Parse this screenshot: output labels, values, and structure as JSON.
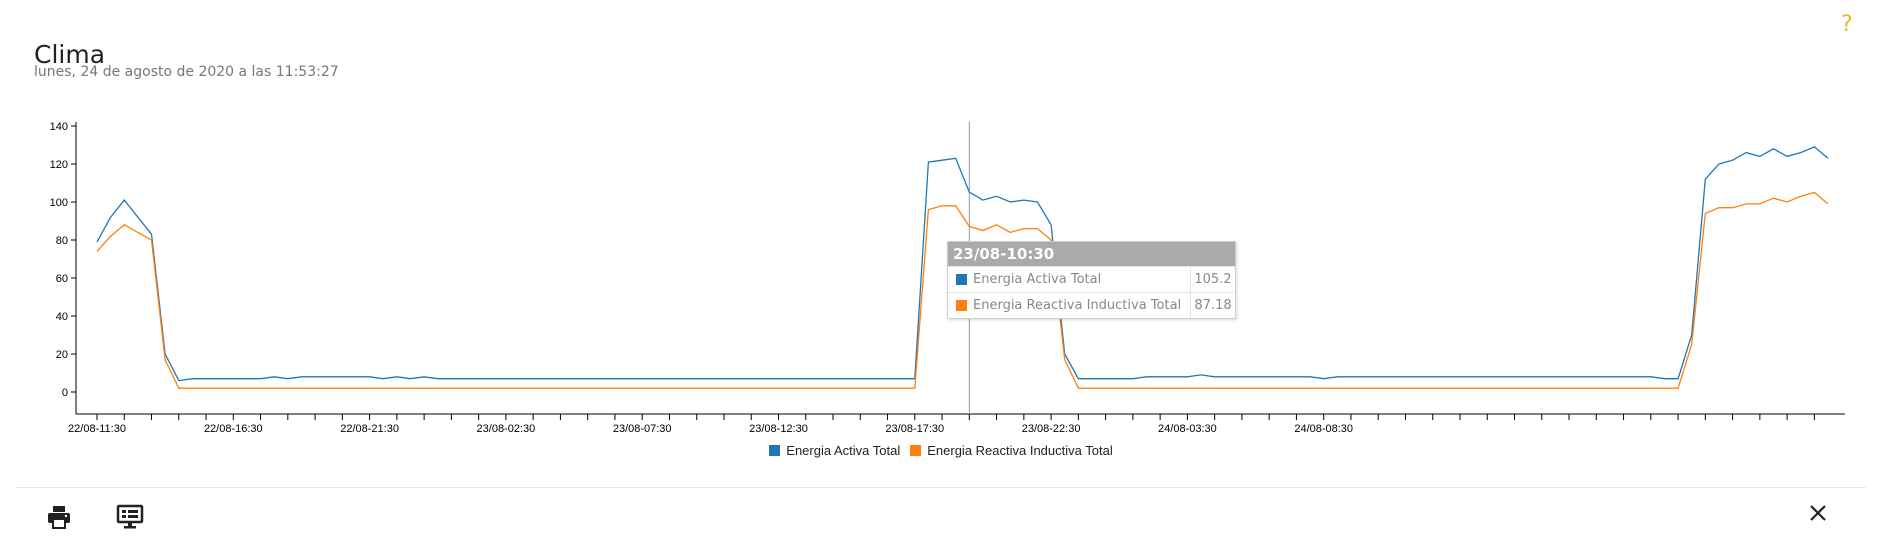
{
  "header": {
    "title": "Clima",
    "subtitle": "lunes, 24 de agosto de 2020 a las 11:53:27",
    "help_label": "?"
  },
  "chart_data": {
    "type": "line",
    "title": "",
    "xlabel": "",
    "ylabel": "",
    "ylim": [
      0,
      140
    ],
    "yticks": [
      0,
      20,
      40,
      60,
      80,
      100,
      120,
      140
    ],
    "x_tick_labels": [
      "22/08-11:30",
      "22/08-16:30",
      "22/08-21:30",
      "23/08-02:30",
      "23/08-07:30",
      "23/08-12:30",
      "23/08-17:30",
      "23/08-22:30",
      "24/08-03:30",
      "24/08-08:30"
    ],
    "interval_minutes": 30,
    "start": "22/08-11:30",
    "series": [
      {
        "name": "Energia Activa Total",
        "color": "#1f77b4",
        "values": [
          79,
          92,
          101,
          92,
          83,
          20,
          6,
          7,
          7,
          7,
          7,
          7,
          7,
          8,
          7,
          8,
          8,
          8,
          8,
          8,
          8,
          7,
          8,
          7,
          8,
          7,
          7,
          7,
          7,
          7,
          7,
          7,
          7,
          7,
          7,
          7,
          7,
          7,
          7,
          7,
          7,
          7,
          7,
          7,
          7,
          7,
          7,
          7,
          7,
          7,
          7,
          7,
          7,
          7,
          7,
          7,
          7,
          7,
          7,
          7,
          7,
          121,
          122,
          123,
          105.2,
          101,
          103,
          100,
          101,
          100,
          88,
          20,
          7,
          7,
          7,
          7,
          7,
          8,
          8,
          8,
          8,
          9,
          8,
          8,
          8,
          8,
          8,
          8,
          8,
          8,
          7,
          8,
          8,
          8,
          8,
          8,
          8,
          8,
          8,
          8,
          8,
          8,
          8,
          8,
          8,
          8,
          8,
          8,
          8,
          8,
          8,
          8,
          8,
          8,
          8,
          7,
          7,
          30,
          112,
          120,
          122,
          126,
          124,
          128,
          124,
          126,
          129,
          123
        ]
      },
      {
        "name": "Energia Reactiva Inductiva Total",
        "color": "#ff7f0e",
        "values": [
          74,
          82,
          88,
          84,
          80,
          17,
          2,
          2,
          2,
          2,
          2,
          2,
          2,
          2,
          2,
          2,
          2,
          2,
          2,
          2,
          2,
          2,
          2,
          2,
          2,
          2,
          2,
          2,
          2,
          2,
          2,
          2,
          2,
          2,
          2,
          2,
          2,
          2,
          2,
          2,
          2,
          2,
          2,
          2,
          2,
          2,
          2,
          2,
          2,
          2,
          2,
          2,
          2,
          2,
          2,
          2,
          2,
          2,
          2,
          2,
          2,
          96,
          98,
          98,
          87.18,
          85,
          88,
          84,
          86,
          86,
          80,
          17,
          2,
          2,
          2,
          2,
          2,
          2,
          2,
          2,
          2,
          2,
          2,
          2,
          2,
          2,
          2,
          2,
          2,
          2,
          2,
          2,
          2,
          2,
          2,
          2,
          2,
          2,
          2,
          2,
          2,
          2,
          2,
          2,
          2,
          2,
          2,
          2,
          2,
          2,
          2,
          2,
          2,
          2,
          2,
          2,
          2,
          25,
          94,
          97,
          97,
          99,
          99,
          102,
          100,
          103,
          105,
          99
        ]
      }
    ],
    "legend_position": "bottom-center",
    "grid": false
  },
  "tooltip": {
    "title": "23/08-10:30",
    "rows": [
      {
        "name": "Energia Activa Total",
        "value": "105.2",
        "color": "#1f77b4"
      },
      {
        "name": "Energia Reactiva Inductiva Total",
        "value": "87.18",
        "color": "#ff7f0e"
      }
    ]
  },
  "footer": {
    "close_label": "✕"
  }
}
